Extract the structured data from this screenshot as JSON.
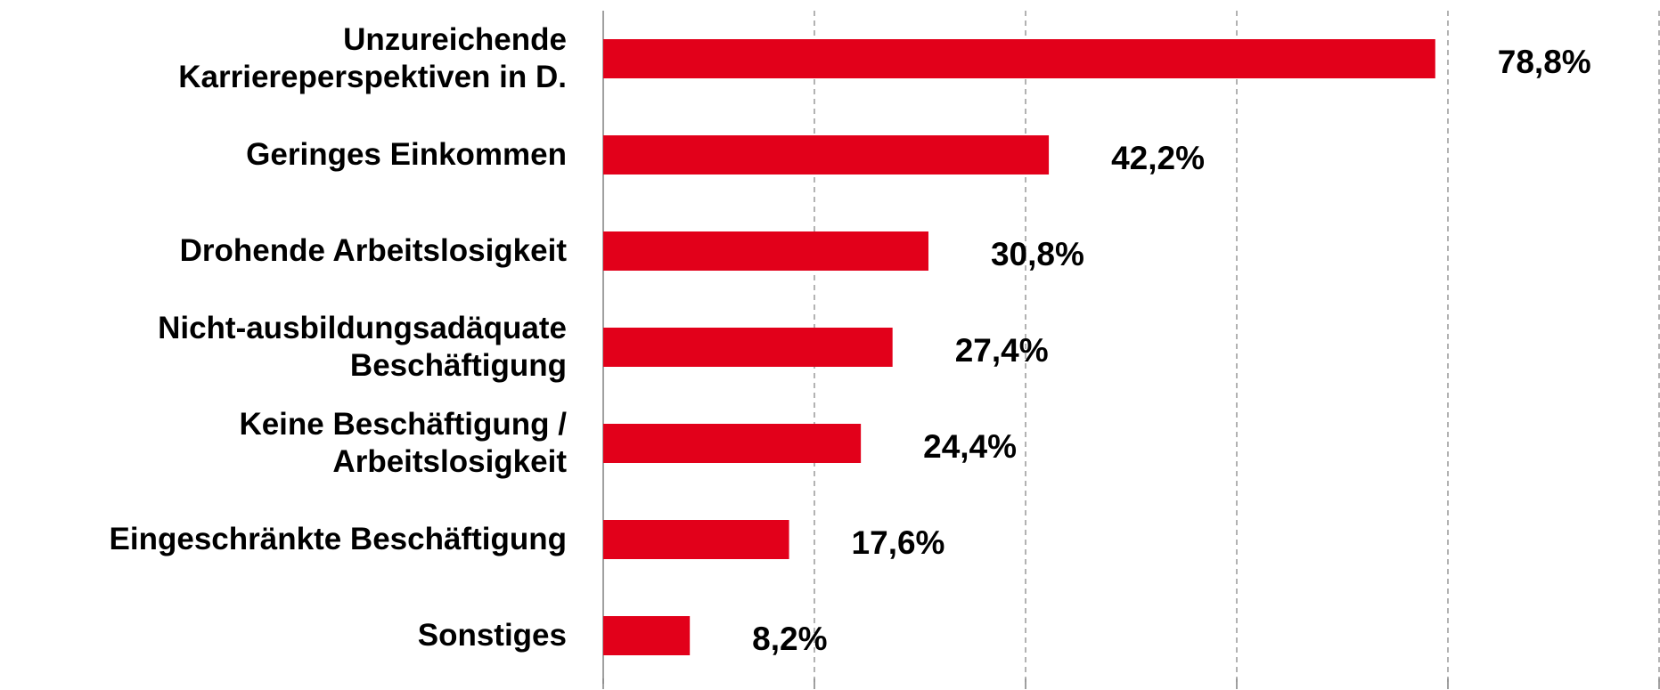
{
  "chart_data": {
    "type": "bar",
    "orientation": "horizontal",
    "categories": [
      "Unzureichende\nKarriereperspektiven in D.",
      "Geringes Einkommen",
      "Drohende Arbeitslosigkeit",
      "Nicht-ausbildungsadäquate\nBeschäftigung",
      "Keine Beschäftigung /\nArbeitslosigkeit",
      "Eingeschränkte Beschäftigung",
      "Sonstiges"
    ],
    "values": [
      78.8,
      42.2,
      30.8,
      27.4,
      24.4,
      17.6,
      8.2
    ],
    "value_labels": [
      "78,8%",
      "42,2%",
      "30,8%",
      "27,4%",
      "24,4%",
      "17,6%",
      "8,2%"
    ],
    "color": "#e2001a",
    "xlim": [
      0,
      100
    ],
    "xticks": [
      0,
      20,
      40,
      60,
      80,
      100
    ],
    "grid": true
  }
}
